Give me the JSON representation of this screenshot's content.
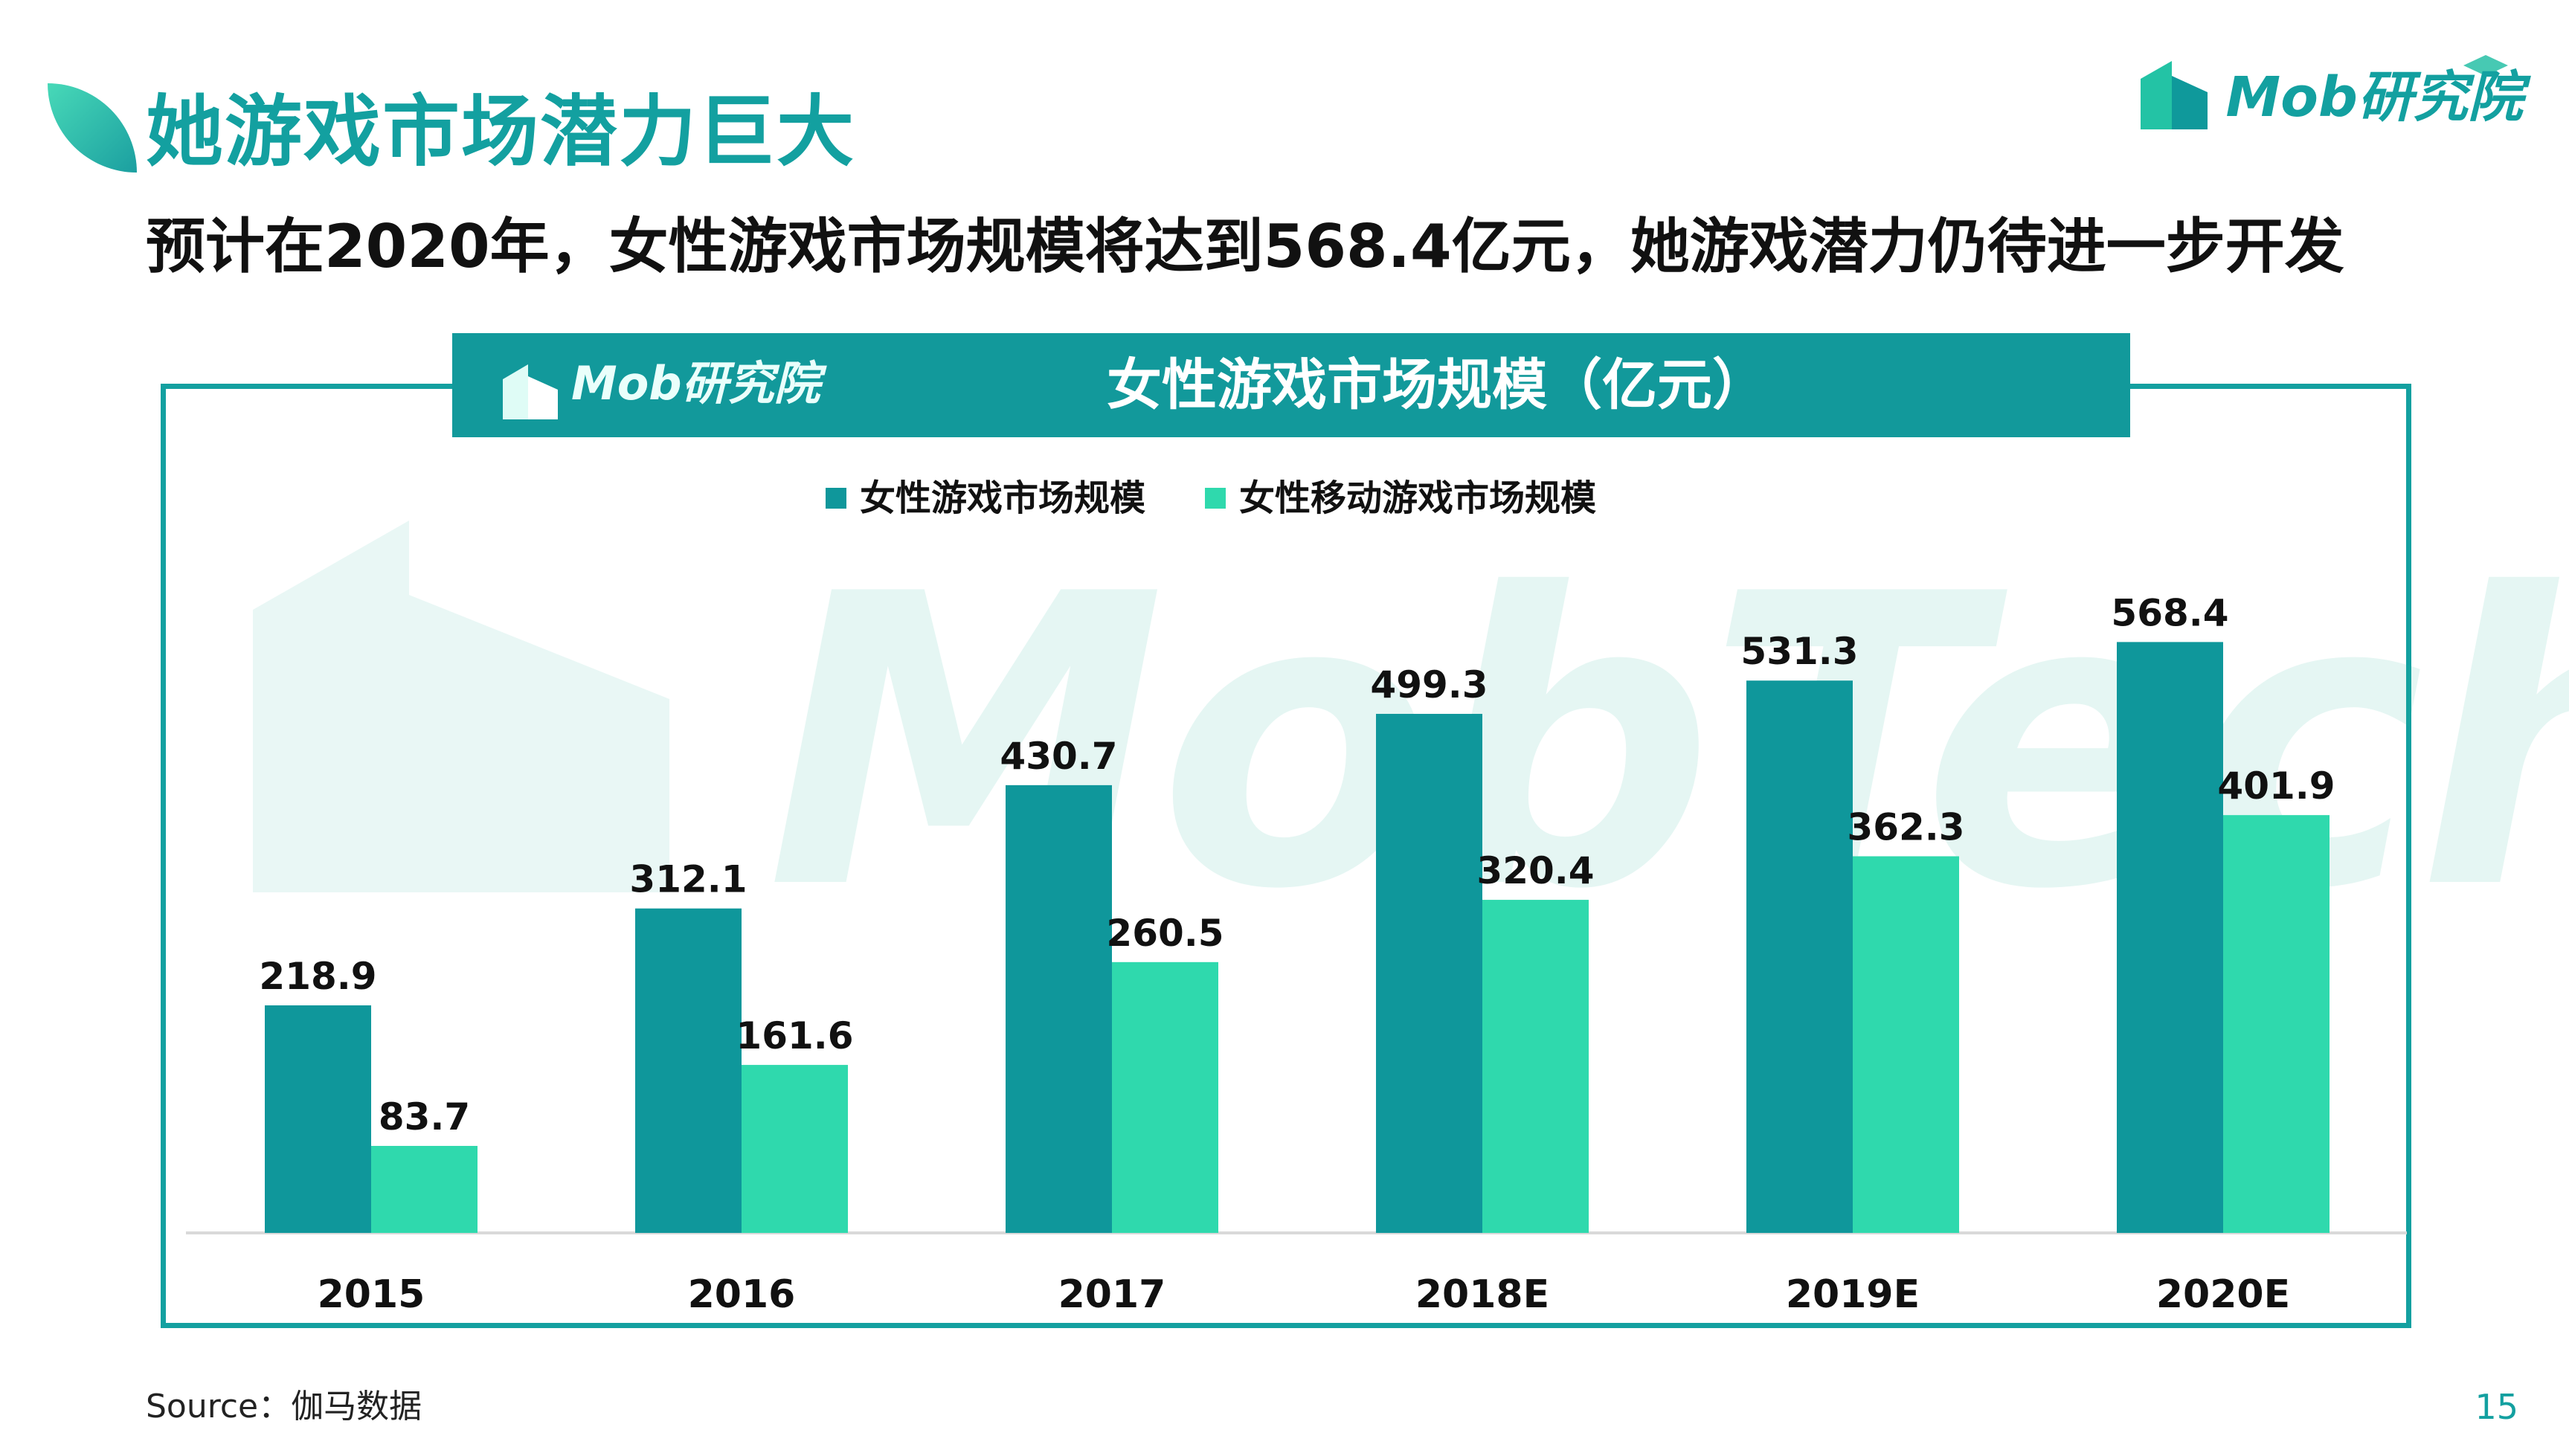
{
  "header": {
    "title": "她游戏市场潜力巨大",
    "subtitle": "预计在2020年，女性游戏市场规模将达到568.4亿元，她游戏潜力仍待进一步开发",
    "brand": "Mob研究院"
  },
  "colors": {
    "accent": "#13a0a0",
    "series_dark": "#0f979b",
    "series_light": "#2fd9ad"
  },
  "chart_data": {
    "type": "bar",
    "title": "女性游戏市场规模（亿元）",
    "categories": [
      "2015",
      "2016",
      "2017",
      "2018E",
      "2019E",
      "2020E"
    ],
    "series": [
      {
        "name": "女性游戏市场规模",
        "values": [
          218.9,
          312.1,
          430.7,
          499.3,
          531.3,
          568.4
        ]
      },
      {
        "name": "女性移动游戏市场规模",
        "values": [
          83.7,
          161.6,
          260.5,
          320.4,
          362.3,
          401.9
        ]
      }
    ],
    "ylim": [
      0,
      600
    ],
    "xlabel": "",
    "ylabel": "",
    "grid": false,
    "legend": "top"
  },
  "watermark": "MobTech",
  "footer": {
    "source": "Source：伽马数据",
    "page_number": "15"
  }
}
